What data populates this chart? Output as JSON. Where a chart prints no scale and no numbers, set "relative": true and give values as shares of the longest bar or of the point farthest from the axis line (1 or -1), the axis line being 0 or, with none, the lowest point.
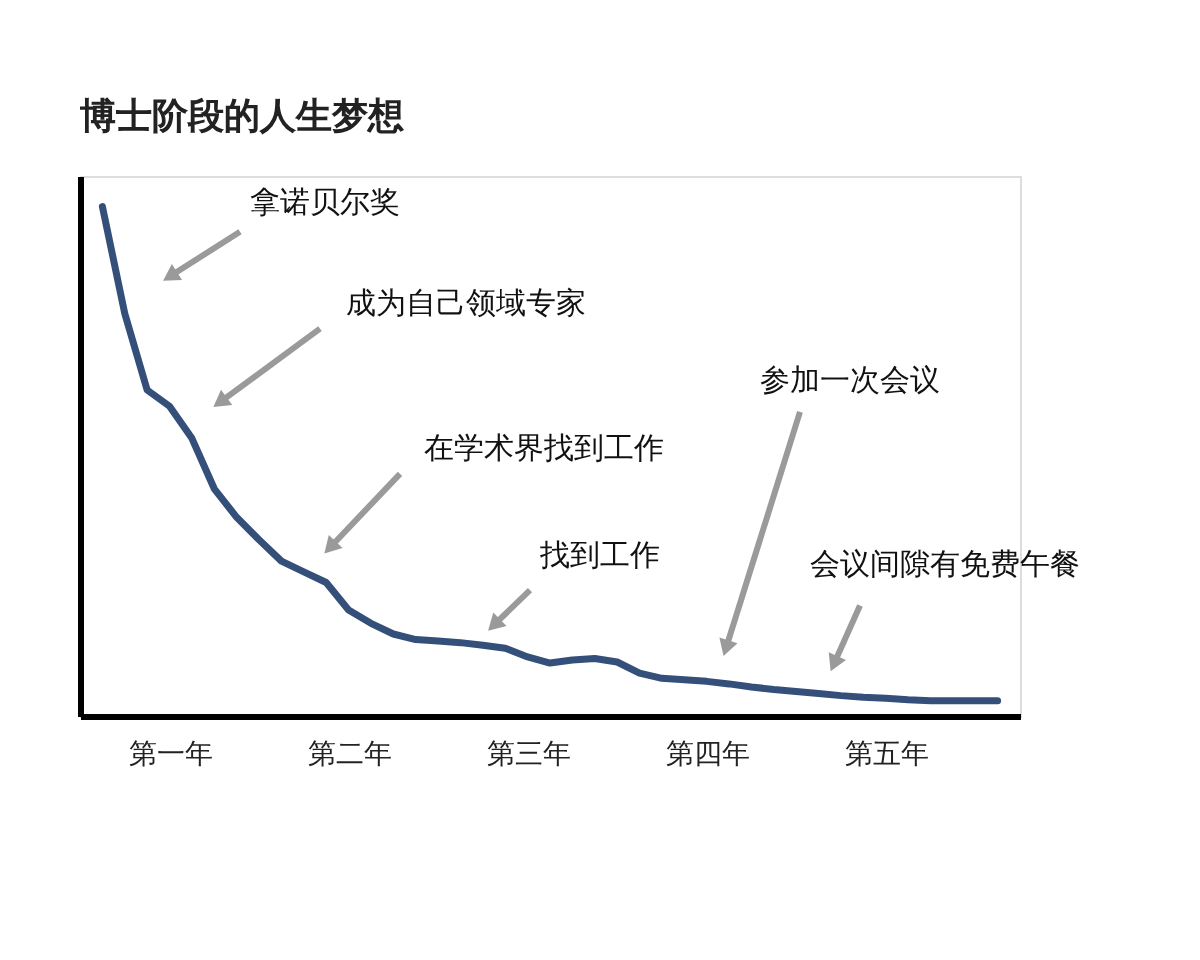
{
  "chart_data": {
    "type": "line",
    "title": "博士阶段的人生梦想",
    "relative": true,
    "grid": false,
    "marker": "none",
    "line_style": "solid",
    "categories": [
      null,
      null,
      null,
      "第一年",
      null,
      null,
      null,
      null,
      null,
      null,
      null,
      "第二年",
      null,
      null,
      null,
      null,
      null,
      null,
      null,
      "第三年",
      null,
      null,
      null,
      null,
      null,
      null,
      null,
      "第四年",
      null,
      null,
      null,
      null,
      null,
      null,
      null,
      "第五年",
      null,
      null,
      null,
      null,
      null
    ],
    "series": [
      {
        "color": "#34507a",
        "values": [
          1.0,
          0.79,
          0.64,
          0.608,
          0.545,
          0.446,
          0.39,
          0.346,
          0.304,
          0.283,
          0.262,
          0.208,
          0.182,
          0.161,
          0.15,
          0.147,
          0.144,
          0.139,
          0.133,
          0.116,
          0.104,
          0.11,
          0.113,
          0.106,
          0.084,
          0.074,
          0.071,
          0.068,
          0.063,
          0.057,
          0.052,
          0.048,
          0.044,
          0.04,
          0.037,
          0.035,
          0.032,
          0.03,
          0.03,
          0.03,
          0.03
        ]
      }
    ],
    "annotations": [
      "拿诺贝尔奖",
      "成为自己领域专家",
      "在学术界找到工作",
      "找到工作",
      "参加一次会议",
      "会议间隙有免费午餐"
    ]
  }
}
